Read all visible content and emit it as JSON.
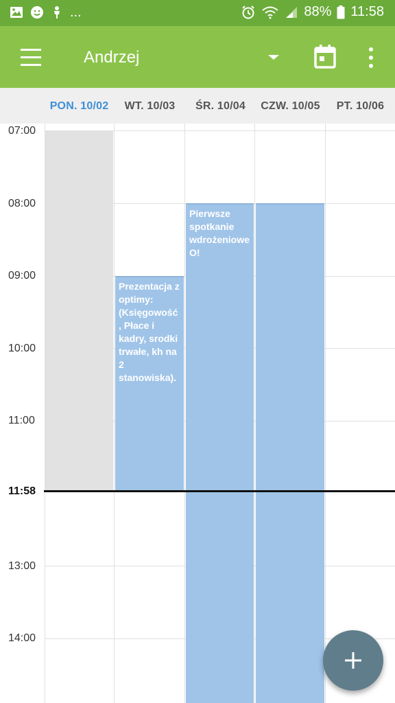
{
  "status_bar": {
    "overflow": "...",
    "battery": "88%",
    "time": "11:58",
    "icons": [
      "image-icon",
      "smiley-icon",
      "person-icon",
      "alarm-icon",
      "wifi-icon",
      "signal-icon",
      "battery-icon"
    ]
  },
  "app_bar": {
    "title": "Andrzej",
    "icons": [
      "menu-icon",
      "dropdown-arrow-icon",
      "calendar-icon",
      "more-vert-icon"
    ]
  },
  "days": [
    {
      "label": "PON. 10/02",
      "today": true
    },
    {
      "label": "WT. 10/03",
      "today": false
    },
    {
      "label": "ŚR. 10/04",
      "today": false
    },
    {
      "label": "CZW. 10/05",
      "today": false
    },
    {
      "label": "PT. 10/06",
      "today": false
    }
  ],
  "time_labels": [
    "07:00",
    "08:00",
    "09:00",
    "10:00",
    "11:00",
    "13:00",
    "14:00"
  ],
  "now_label": "11:58",
  "events": [
    {
      "title": "Prezentacja z optimy: (Księgowość, Płace i kadry, srodki trwałe, kh na 2 stanowiska).",
      "day": "WT. 10/03",
      "start": "09:00"
    },
    {
      "title": "Pierwsze spotkanie wdrożeniowe O!",
      "day": "ŚR. 10/04",
      "start": "08:00"
    },
    {
      "title": "",
      "day": "CZW. 10/05",
      "start": "08:00"
    }
  ],
  "colors": {
    "status_bar": "#6aab3a",
    "app_bar": "#8bc34a",
    "today": "#3d8fd6",
    "event": "#a0c4e8",
    "fab": "#607d8b"
  },
  "fab": {
    "icon": "plus-icon"
  }
}
